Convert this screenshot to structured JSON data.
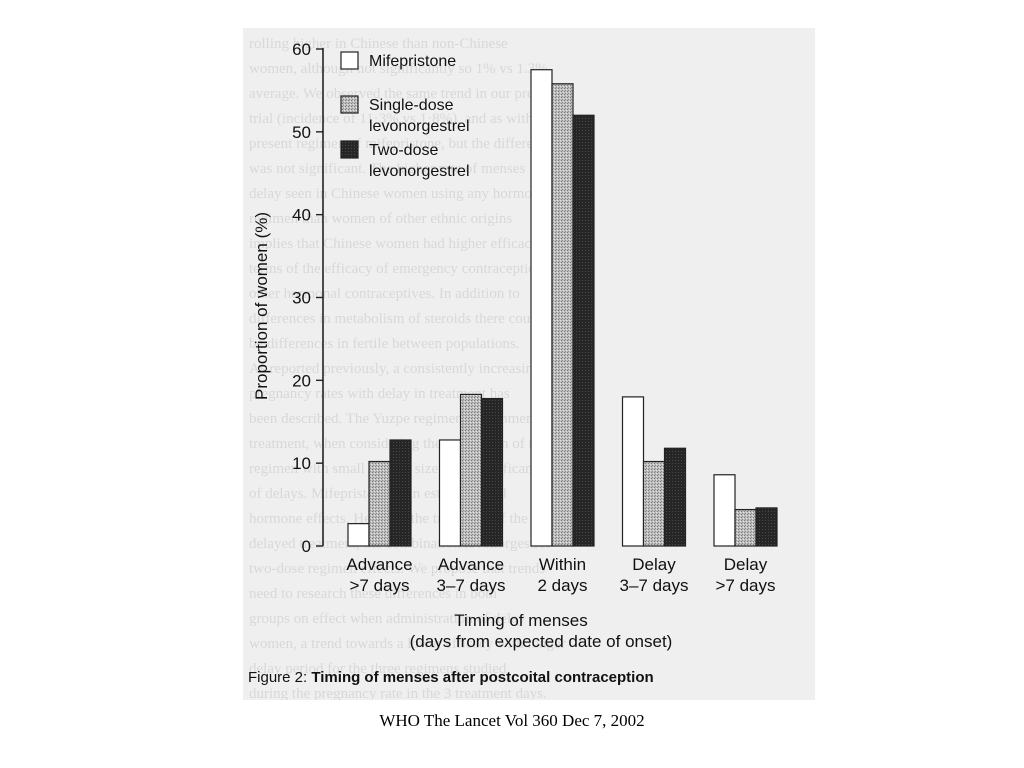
{
  "chart_data": {
    "type": "bar",
    "categories": [
      [
        "Advance",
        ">7 days"
      ],
      [
        "Advance",
        "3–7 days"
      ],
      [
        "Within",
        "2 days"
      ],
      [
        "Delay",
        "3–7 days"
      ],
      [
        "Delay",
        ">7 days"
      ]
    ],
    "series": [
      {
        "name": "Mifepristone",
        "values": [
          2.7,
          12.8,
          57.5,
          18.0,
          8.6
        ],
        "color": "#ffffff"
      },
      {
        "name": "Single-dose levonorgestrel",
        "legend_lines": [
          "Single-dose",
          "levonorgestrel"
        ],
        "values": [
          10.2,
          18.3,
          55.8,
          10.2,
          4.4
        ],
        "color": "#a8a8a8"
      },
      {
        "name": "Two-dose levonorgestrel",
        "legend_lines": [
          "Two-dose",
          "levonorgestrel"
        ],
        "values": [
          12.8,
          17.8,
          52.0,
          11.8,
          4.6
        ],
        "color": "#262626"
      }
    ],
    "yticks": [
      0,
      10,
      20,
      30,
      40,
      50,
      60
    ],
    "ylim": [
      0,
      60
    ],
    "ylabel": "Proportion of women (%)",
    "xlabel": [
      "Timing of menses",
      "(days from expected date of onset)"
    ],
    "legend_position": "top-left",
    "grid": false
  },
  "figure": {
    "caption_prefix": "Figure 2:",
    "caption_title": "Timing of menses after postcoital contraception"
  },
  "source": "WHO The Lancet Vol 360 Dec 7, 2002"
}
